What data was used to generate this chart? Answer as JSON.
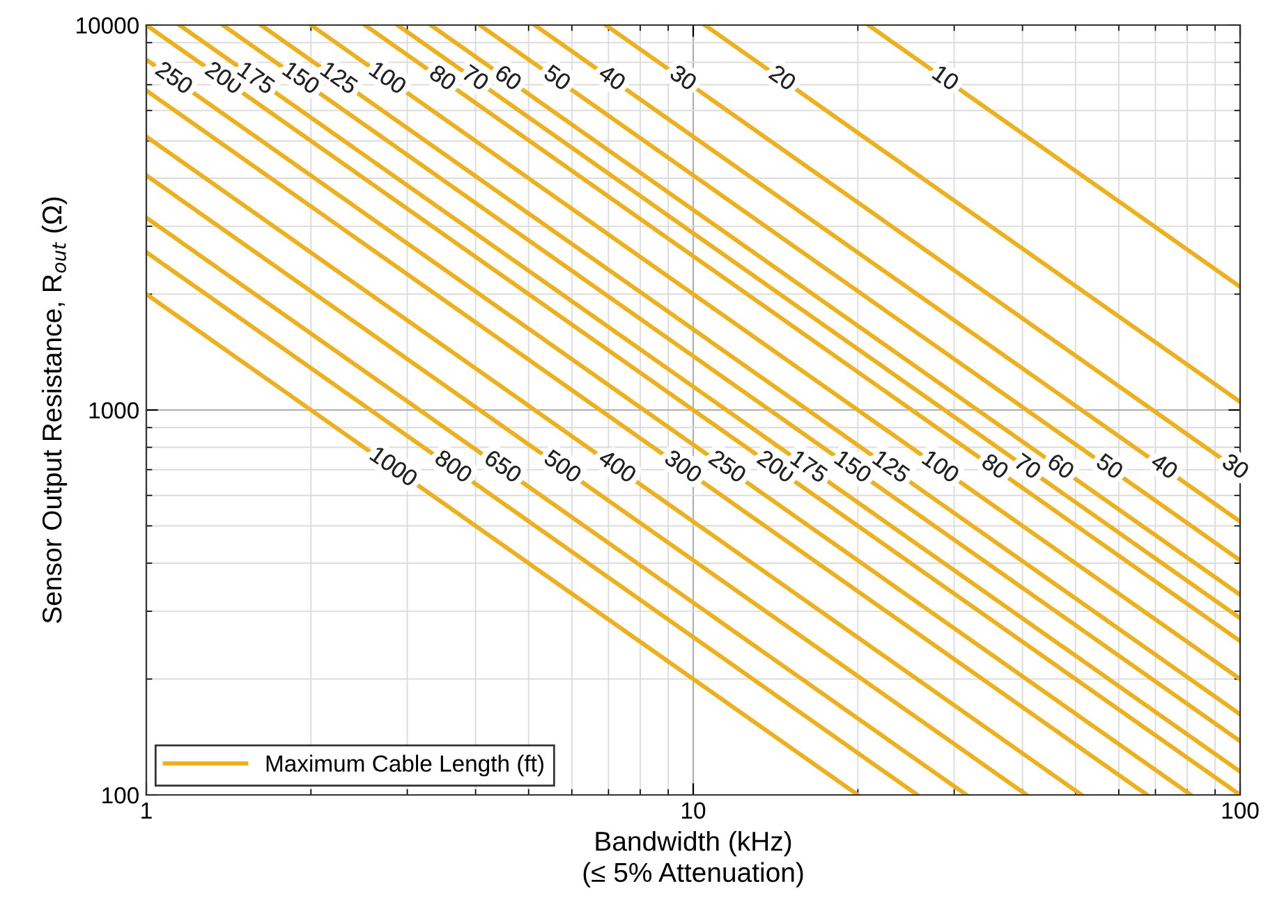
{
  "chart_data": {
    "type": "line",
    "xlabel": "Bandwidth (kHz)\n(≤ 5% Attenuation)",
    "ylabel": "Sensor Output Resistance, R$_{out}$ (Ω)",
    "legend": "bottom left",
    "log": "xy",
    "grid": true,
    "line_style": "solid",
    "xlim": [
      1,
      100
    ],
    "ylim": [
      100,
      10000
    ],
    "xticks": [
      1,
      10,
      100
    ],
    "yticks": [
      100,
      1000,
      10000
    ],
    "series": [
      {
        "name": "Maximum Cable Length (ft)",
        "color": "#edb120",
        "x": [
          1,
          20
        ],
        "values": [
          2000,
          100
        ]
      },
      {
        "color": "#edb120",
        "x": [
          1,
          25.7
        ],
        "values": [
          2570,
          100
        ]
      },
      {
        "color": "#edb120",
        "x": [
          1,
          31.6
        ],
        "values": [
          3160,
          100
        ]
      },
      {
        "color": "#edb120",
        "x": [
          1,
          40.7
        ],
        "values": [
          4070,
          100
        ]
      },
      {
        "color": "#edb120",
        "x": [
          1,
          51.3
        ],
        "values": [
          5130,
          100
        ]
      },
      {
        "color": "#edb120",
        "x": [
          1,
          67.6
        ],
        "values": [
          6760,
          100
        ]
      },
      {
        "color": "#edb120",
        "x": [
          1,
          81.3
        ],
        "values": [
          8130,
          100
        ]
      },
      {
        "color": "#edb120",
        "x": [
          1,
          100
        ],
        "values": [
          10000,
          100
        ]
      },
      {
        "color": "#edb120",
        "x": [
          1.15,
          100
        ],
        "values": [
          10000,
          115
        ]
      },
      {
        "color": "#edb120",
        "x": [
          1.38,
          100
        ],
        "values": [
          10000,
          138
        ]
      },
      {
        "color": "#edb120",
        "x": [
          1.62,
          100
        ],
        "values": [
          10000,
          162
        ]
      },
      {
        "color": "#edb120",
        "x": [
          2.0,
          100
        ],
        "values": [
          10000,
          200
        ]
      },
      {
        "color": "#edb120",
        "x": [
          2.51,
          100
        ],
        "values": [
          10000,
          251
        ]
      },
      {
        "color": "#edb120",
        "x": [
          2.88,
          100
        ],
        "values": [
          10000,
          288
        ]
      },
      {
        "color": "#edb120",
        "x": [
          3.31,
          100
        ],
        "values": [
          10000,
          331
        ]
      },
      {
        "color": "#edb120",
        "x": [
          4.07,
          100
        ],
        "values": [
          10000,
          407
        ]
      },
      {
        "color": "#edb120",
        "x": [
          5.13,
          100
        ],
        "values": [
          10000,
          513
        ]
      },
      {
        "color": "#edb120",
        "x": [
          6.92,
          100
        ],
        "values": [
          10000,
          692
        ]
      },
      {
        "color": "#edb120",
        "x": [
          10.5,
          100
        ],
        "values": [
          10000,
          1050
        ]
      },
      {
        "color": "#edb120",
        "x": [
          20.9,
          100
        ],
        "values": [
          10000,
          2090
        ]
      }
    ],
    "annotations": [
      {
        "text": "250",
        "x": 1.12,
        "y": 7240
      },
      {
        "text": "200",
        "x": 1.38,
        "y": 7240
      },
      {
        "text": "175",
        "x": 1.58,
        "y": 7240
      },
      {
        "text": "150",
        "x": 1.91,
        "y": 7240
      },
      {
        "text": "125",
        "x": 2.24,
        "y": 7240
      },
      {
        "text": "100",
        "x": 2.75,
        "y": 7240
      },
      {
        "text": "80",
        "x": 3.47,
        "y": 7240
      },
      {
        "text": "70",
        "x": 3.98,
        "y": 7240
      },
      {
        "text": "60",
        "x": 4.57,
        "y": 7240
      },
      {
        "text": "50",
        "x": 5.62,
        "y": 7240
      },
      {
        "text": "40",
        "x": 7.08,
        "y": 7240
      },
      {
        "text": "30",
        "x": 9.55,
        "y": 7240
      },
      {
        "text": "20",
        "x": 14.5,
        "y": 7240
      },
      {
        "text": "10",
        "x": 28.8,
        "y": 7240
      },
      {
        "text": "1000",
        "x": 2.82,
        "y": 708
      },
      {
        "text": "800",
        "x": 3.63,
        "y": 708
      },
      {
        "text": "650",
        "x": 4.47,
        "y": 708
      },
      {
        "text": "500",
        "x": 5.75,
        "y": 708
      },
      {
        "text": "400",
        "x": 7.24,
        "y": 708
      },
      {
        "text": "300",
        "x": 9.55,
        "y": 708
      },
      {
        "text": "250",
        "x": 11.5,
        "y": 708
      },
      {
        "text": "200",
        "x": 14.1,
        "y": 708
      },
      {
        "text": "175",
        "x": 16.2,
        "y": 708
      },
      {
        "text": "150",
        "x": 19.5,
        "y": 708
      },
      {
        "text": "125",
        "x": 22.9,
        "y": 708
      },
      {
        "text": "100",
        "x": 28.2,
        "y": 708
      },
      {
        "text": "80",
        "x": 35.5,
        "y": 708
      },
      {
        "text": "70",
        "x": 40.7,
        "y": 708
      },
      {
        "text": "60",
        "x": 46.8,
        "y": 708
      },
      {
        "text": "50",
        "x": 57.5,
        "y": 708
      },
      {
        "text": "40",
        "x": 72.4,
        "y": 708
      },
      {
        "text": "30",
        "x": 97.7,
        "y": 708
      }
    ]
  }
}
